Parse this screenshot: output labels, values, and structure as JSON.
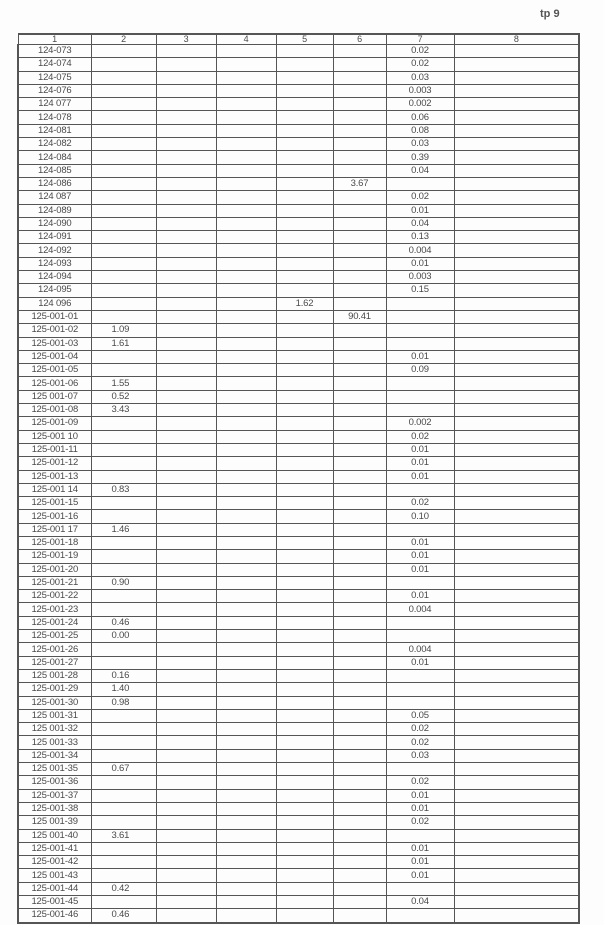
{
  "page_label": "tp 9",
  "columns": [
    "1",
    "2",
    "3",
    "4",
    "5",
    "6",
    "7",
    "8"
  ],
  "rows": [
    [
      "124-073",
      "",
      "",
      "",
      "",
      "",
      "0.02",
      ""
    ],
    [
      "124-074",
      "",
      "",
      "",
      "",
      "",
      "0.02",
      ""
    ],
    [
      "124-075",
      "",
      "",
      "",
      "",
      "",
      "0.03",
      ""
    ],
    [
      "124-076",
      "",
      "",
      "",
      "",
      "",
      "0.003",
      ""
    ],
    [
      "124 077",
      "",
      "",
      "",
      "",
      "",
      "0.002",
      ""
    ],
    [
      "124-078",
      "",
      "",
      "",
      "",
      "",
      "0.06",
      ""
    ],
    [
      "124-081",
      "",
      "",
      "",
      "",
      "",
      "0.08",
      ""
    ],
    [
      "124-082",
      "",
      "",
      "",
      "",
      "",
      "0.03",
      ""
    ],
    [
      "124-084",
      "",
      "",
      "",
      "",
      "",
      "0.39",
      ""
    ],
    [
      "124-085",
      "",
      "",
      "",
      "",
      "",
      "0.04",
      ""
    ],
    [
      "124-086",
      "",
      "",
      "",
      "",
      "3.67",
      "",
      ""
    ],
    [
      "124 087",
      "",
      "",
      "",
      "",
      "",
      "0.02",
      ""
    ],
    [
      "124-089",
      "",
      "",
      "",
      "",
      "",
      "0.01",
      ""
    ],
    [
      "124-090",
      "",
      "",
      "",
      "",
      "",
      "0.04",
      ""
    ],
    [
      "124-091",
      "",
      "",
      "",
      "",
      "",
      "0.13",
      ""
    ],
    [
      "124-092",
      "",
      "",
      "",
      "",
      "",
      "0.004",
      ""
    ],
    [
      "124-093",
      "",
      "",
      "",
      "",
      "",
      "0.01",
      ""
    ],
    [
      "124-094",
      "",
      "",
      "",
      "",
      "",
      "0.003",
      ""
    ],
    [
      "124-095",
      "",
      "",
      "",
      "",
      "",
      "0.15",
      ""
    ],
    [
      "124 096",
      "",
      "",
      "",
      "1.62",
      "",
      "",
      ""
    ],
    [
      "125-001-01",
      "",
      "",
      "",
      "",
      "90.41",
      "",
      ""
    ],
    [
      "125-001-02",
      "1.09",
      "",
      "",
      "",
      "",
      "",
      ""
    ],
    [
      "125-001-03",
      "1.61",
      "",
      "",
      "",
      "",
      "",
      ""
    ],
    [
      "125-001-04",
      "",
      "",
      "",
      "",
      "",
      "0.01",
      ""
    ],
    [
      "125-001-05",
      "",
      "",
      "",
      "",
      "",
      "0.09",
      ""
    ],
    [
      "125-001-06",
      "1.55",
      "",
      "",
      "",
      "",
      "",
      ""
    ],
    [
      "125 001-07",
      "0.52",
      "",
      "",
      "",
      "",
      "",
      ""
    ],
    [
      "125-001-08",
      "3.43",
      "",
      "",
      "",
      "",
      "",
      ""
    ],
    [
      "125-001-09",
      "",
      "",
      "",
      "",
      "",
      "0.002",
      ""
    ],
    [
      "125-001 10",
      "",
      "",
      "",
      "",
      "",
      "0.02",
      ""
    ],
    [
      "125-001-11",
      "",
      "",
      "",
      "",
      "",
      "0.01",
      ""
    ],
    [
      "125-001-12",
      "",
      "",
      "",
      "",
      "",
      "0.01",
      ""
    ],
    [
      "125-001-13",
      "",
      "",
      "",
      "",
      "",
      "0.01",
      ""
    ],
    [
      "125-001 14",
      "0.83",
      "",
      "",
      "",
      "",
      "",
      ""
    ],
    [
      "125-001-15",
      "",
      "",
      "",
      "",
      "",
      "0.02",
      ""
    ],
    [
      "125-001-16",
      "",
      "",
      "",
      "",
      "",
      "0.10",
      ""
    ],
    [
      "125-001 17",
      "1.46",
      "",
      "",
      "",
      "",
      "",
      ""
    ],
    [
      "125-001-18",
      "",
      "",
      "",
      "",
      "",
      "0.01",
      ""
    ],
    [
      "125-001-19",
      "",
      "",
      "",
      "",
      "",
      "0.01",
      ""
    ],
    [
      "125-001-20",
      "",
      "",
      "",
      "",
      "",
      "0.01",
      ""
    ],
    [
      "125-001-21",
      "0.90",
      "",
      "",
      "",
      "",
      "",
      ""
    ],
    [
      "125-001-22",
      "",
      "",
      "",
      "",
      "",
      "0.01",
      ""
    ],
    [
      "125-001-23",
      "",
      "",
      "",
      "",
      "",
      "0.004",
      ""
    ],
    [
      "125-001-24",
      "0.46",
      "",
      "",
      "",
      "",
      "",
      ""
    ],
    [
      "125-001-25",
      "0.00",
      "",
      "",
      "",
      "",
      "",
      ""
    ],
    [
      "125-001-26",
      "",
      "",
      "",
      "",
      "",
      "0.004",
      ""
    ],
    [
      "125-001-27",
      "",
      "",
      "",
      "",
      "",
      "0.01",
      ""
    ],
    [
      "125 001-28",
      "0.16",
      "",
      "",
      "",
      "",
      "",
      ""
    ],
    [
      "125-001-29",
      "1.40",
      "",
      "",
      "",
      "",
      "",
      ""
    ],
    [
      "125-001-30",
      "0.98",
      "",
      "",
      "",
      "",
      "",
      ""
    ],
    [
      "125 001-31",
      "",
      "",
      "",
      "",
      "",
      "0.05",
      ""
    ],
    [
      "125 001-32",
      "",
      "",
      "",
      "",
      "",
      "0.02",
      ""
    ],
    [
      "125 001-33",
      "",
      "",
      "",
      "",
      "",
      "0.02",
      ""
    ],
    [
      "125-001-34",
      "",
      "",
      "",
      "",
      "",
      "0.03",
      ""
    ],
    [
      "125 001-35",
      "0.67",
      "",
      "",
      "",
      "",
      "",
      ""
    ],
    [
      "125-001-36",
      "",
      "",
      "",
      "",
      "",
      "0.02",
      ""
    ],
    [
      "125-001-37",
      "",
      "",
      "",
      "",
      "",
      "0.01",
      ""
    ],
    [
      "125-001-38",
      "",
      "",
      "",
      "",
      "",
      "0.01",
      ""
    ],
    [
      "125 001-39",
      "",
      "",
      "",
      "",
      "",
      "0.02",
      ""
    ],
    [
      "125 001-40",
      "3.61",
      "",
      "",
      "",
      "",
      "",
      ""
    ],
    [
      "125-001-41",
      "",
      "",
      "",
      "",
      "",
      "0.01",
      ""
    ],
    [
      "125-001-42",
      "",
      "",
      "",
      "",
      "",
      "0.01",
      ""
    ],
    [
      "125 001-43",
      "",
      "",
      "",
      "",
      "",
      "0.01",
      ""
    ],
    [
      "125-001-44",
      "0.42",
      "",
      "",
      "",
      "",
      "",
      ""
    ],
    [
      "125-001-45",
      "",
      "",
      "",
      "",
      "",
      "0.04",
      ""
    ],
    [
      "125-001-46",
      "0.46",
      "",
      "",
      "",
      "",
      "",
      ""
    ]
  ]
}
